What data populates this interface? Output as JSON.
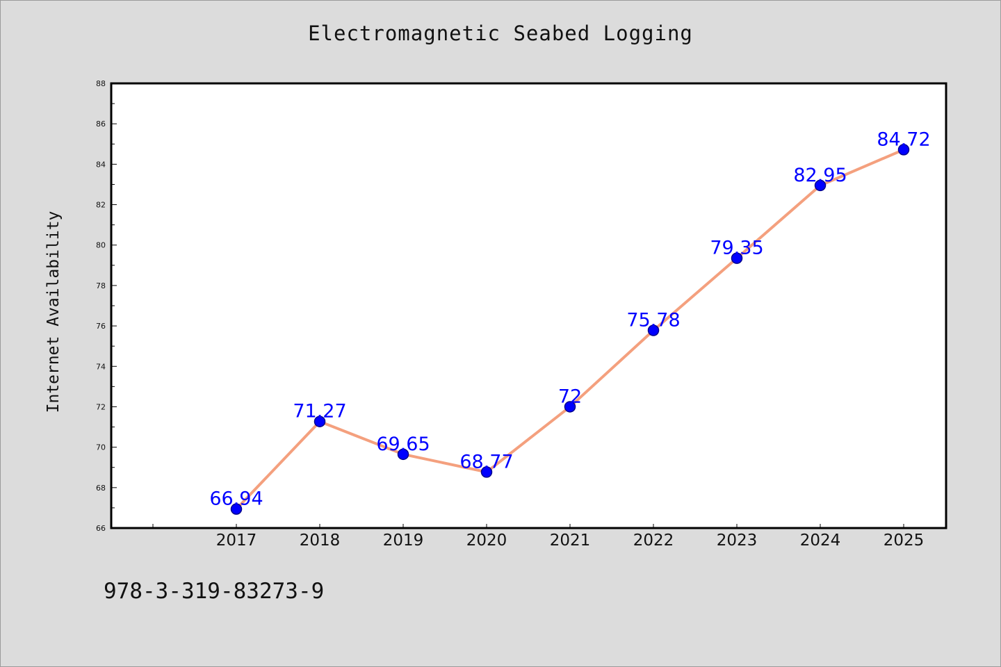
{
  "chart_data": {
    "type": "line",
    "title": "Electromagnetic Seabed Logging",
    "xlabel": "",
    "ylabel": "Internet Availability",
    "categories": [
      "2017",
      "2018",
      "2019",
      "2020",
      "2021",
      "2022",
      "2023",
      "2024",
      "2025"
    ],
    "series": [
      {
        "values": [
          66.94,
          71.27,
          69.65,
          68.77,
          72,
          75.78,
          79.35,
          82.95,
          84.72
        ]
      }
    ],
    "data_labels": [
      "66.94",
      "71.27",
      "69.65",
      "68.77",
      "72",
      "75.78",
      "79.35",
      "82.95",
      "84.72"
    ],
    "ylim": [
      66,
      88
    ],
    "y_ticks": [
      "66",
      "68",
      "70",
      "72",
      "74",
      "76",
      "78",
      "80",
      "82",
      "84",
      "86",
      "88"
    ],
    "grid": false,
    "legend": "none",
    "colors": {
      "line": "#f4a07e",
      "marker_fill": "#0000ff",
      "marker_edge": "#00008b",
      "data_label": "#0000ff",
      "plot_background": "#ffffff",
      "page_background": "#dcdcdc"
    }
  },
  "footer": {
    "code": "978-3-319-83273-9"
  }
}
